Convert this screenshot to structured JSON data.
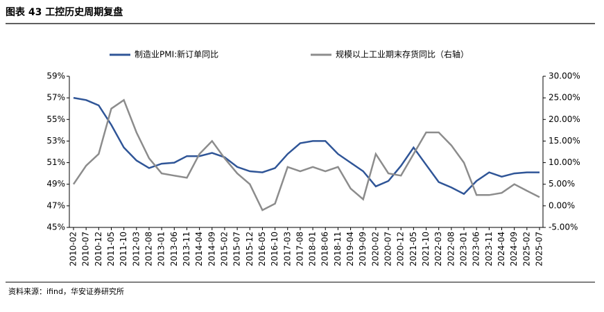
{
  "chart_data": {
    "type": "line",
    "title": "图表 43  工控历史周期复盘",
    "source": "资料来源：ifind，华安证券研究所",
    "categories": [
      "2010-02",
      "2010-07",
      "2010-12",
      "2011-05",
      "2011-10",
      "2012-03",
      "2012-08",
      "2013-01",
      "2013-06",
      "2013-11",
      "2014-04",
      "2014-09",
      "2015-02",
      "2015-07",
      "2015-12",
      "2016-05",
      "2016-10",
      "2017-03",
      "2017-08",
      "2018-01",
      "2018-06",
      "2018-11",
      "2019-04",
      "2019-09",
      "2020-02",
      "2020-07",
      "2020-12",
      "2021-05",
      "2021-10",
      "2022-03",
      "2022-08",
      "2023-01",
      "2023-06",
      "2023-11",
      "2024-04",
      "2024-09",
      "2025-02",
      "2025-07"
    ],
    "series": [
      {
        "name": "制造业PMI:新订单同比",
        "color": "#2f5597",
        "values": [
          57.0,
          56.8,
          56.3,
          54.5,
          52.4,
          51.2,
          50.5,
          50.9,
          51.0,
          51.6,
          51.6,
          51.9,
          51.5,
          50.6,
          50.2,
          50.1,
          50.5,
          51.8,
          52.8,
          53.0,
          53.0,
          51.8,
          51.0,
          50.2,
          48.8,
          49.3,
          50.7,
          52.4,
          50.8,
          49.2,
          48.7,
          48.1,
          49.3,
          50.1,
          49.7,
          50.0,
          50.1,
          50.1
        ]
      },
      {
        "name": "规模以上工业期末存货同比（右轴）",
        "color": "#8c8c8c",
        "axis": "y2",
        "values": [
          5,
          9.3,
          12,
          22.5,
          24.5,
          17,
          11,
          7.5,
          7,
          6.5,
          12,
          15,
          11,
          7.5,
          5,
          -1,
          0.5,
          9,
          8,
          9,
          8,
          9,
          4,
          1.5,
          12,
          7.5,
          7,
          12,
          17,
          17,
          14,
          10,
          2.5,
          2.5,
          3,
          5,
          3.5,
          2
        ]
      }
    ],
    "ylim": [
      45,
      59
    ],
    "yticks": [
      {
        "value": 45,
        "label": "45%"
      },
      {
        "value": 47,
        "label": "47%"
      },
      {
        "value": 49,
        "label": "49%"
      },
      {
        "value": 51,
        "label": "51%"
      },
      {
        "value": 53,
        "label": "53%"
      },
      {
        "value": 55,
        "label": "55%"
      },
      {
        "value": 57,
        "label": "57%"
      },
      {
        "value": 59,
        "label": "59%"
      }
    ],
    "y2lim": [
      -5,
      30
    ],
    "y2ticks": [
      {
        "value": -5,
        "label": "-5.00%"
      },
      {
        "value": 0,
        "label": "0.00%"
      },
      {
        "value": 5,
        "label": "5.00%"
      },
      {
        "value": 10,
        "label": "10.00%"
      },
      {
        "value": 15,
        "label": "15.00%"
      },
      {
        "value": 20,
        "label": "20.00%"
      },
      {
        "value": 25,
        "label": "25.00%"
      },
      {
        "value": 30,
        "label": "30.00%"
      }
    ],
    "legend": "top"
  }
}
